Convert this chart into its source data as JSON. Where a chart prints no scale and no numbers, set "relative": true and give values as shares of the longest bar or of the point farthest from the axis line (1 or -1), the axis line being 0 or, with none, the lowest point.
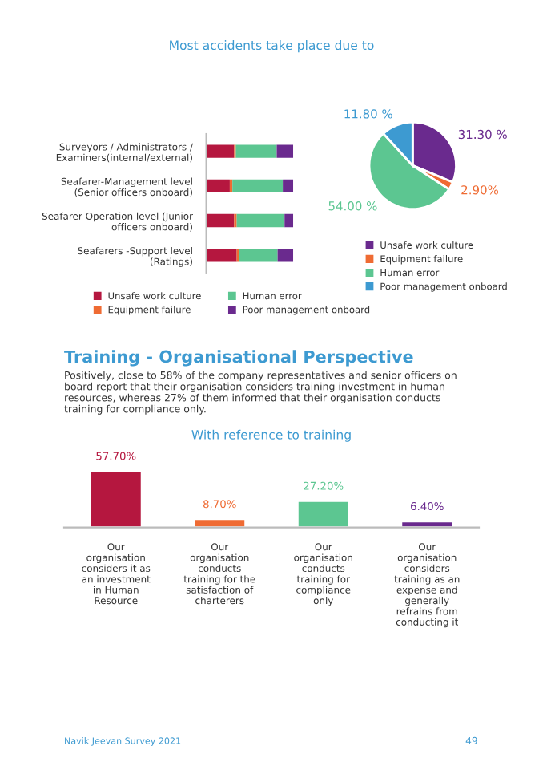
{
  "chart_data": [
    {
      "type": "bar",
      "orientation": "horizontal",
      "stacked": true,
      "relative": true,
      "title": "Most accidents take place due to",
      "categories": [
        "Surveyors / Administrators / Examiners(internal/external)",
        "Seafarer-Management level (Senior officers onboard)",
        "Seafarer-Operation level (Junior officers onboard)",
        "Seafarers -Support level (Ratings)"
      ],
      "series": [
        {
          "name": "Unsafe work culture",
          "color": "#b5173f",
          "values": [
            0.32,
            0.27,
            0.32,
            0.35
          ]
        },
        {
          "name": "Equipment failure",
          "color": "#ef6b33",
          "values": [
            0.02,
            0.03,
            0.03,
            0.03
          ]
        },
        {
          "name": "Human error",
          "color": "#5cc691",
          "values": [
            0.47,
            0.58,
            0.55,
            0.44
          ]
        },
        {
          "name": "Poor management onboard",
          "color": "#6a2a8e",
          "values": [
            0.19,
            0.12,
            0.1,
            0.18
          ]
        }
      ],
      "legend": "bottom"
    },
    {
      "type": "pie",
      "categories": [
        "Unsafe work culture",
        "Equipment failure",
        "Human error",
        "Poor management onboard"
      ],
      "values": [
        31.3,
        2.9,
        54.0,
        11.8
      ],
      "colors": [
        "#6a2a8e",
        "#ef6b33",
        "#5cc691",
        "#3d9ad1"
      ],
      "value_labels": [
        "31.30 %",
        "2.90%",
        "54.00 %",
        "11.80 %"
      ],
      "legend": "bottom"
    },
    {
      "type": "bar",
      "title": "With reference to training",
      "categories": [
        "Our organisation considers it as an investment in Human Resource",
        "Our organisation conducts training for the satisfaction of charterers",
        "Our organisation conducts training for compliance only",
        "Our organisation considers training as an expense and generally refrains from conducting it"
      ],
      "values": [
        57.7,
        8.7,
        27.2,
        6.4
      ],
      "colors": [
        "#b5173f",
        "#ef6b33",
        "#5cc691",
        "#6a2a8e"
      ],
      "value_labels": [
        "57.70%",
        "8.70%",
        "27.20%",
        "6.40%"
      ],
      "annotations": [
        "Training - Organisational Perspective",
        "Positively, close to 58% of the company representatives and senior officers on board report that their organisation considers training investment in human resources, whereas 27% of them informed that their organisation conducts training for compliance only.",
        "Navik Jeevan Survey 2021",
        "49"
      ]
    }
  ]
}
